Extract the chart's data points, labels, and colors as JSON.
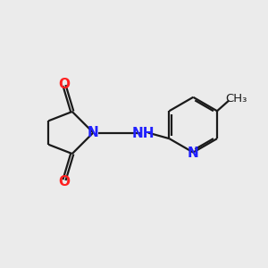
{
  "background_color": "#ebebeb",
  "bond_color": "#1a1a1a",
  "N_color": "#2020ff",
  "O_color": "#ff2020",
  "NH_color": "#2060a0",
  "line_width": 1.6,
  "font_size": 11,
  "font_size_small": 9.5,
  "xlim": [
    0,
    10
  ],
  "ylim": [
    0,
    10
  ]
}
